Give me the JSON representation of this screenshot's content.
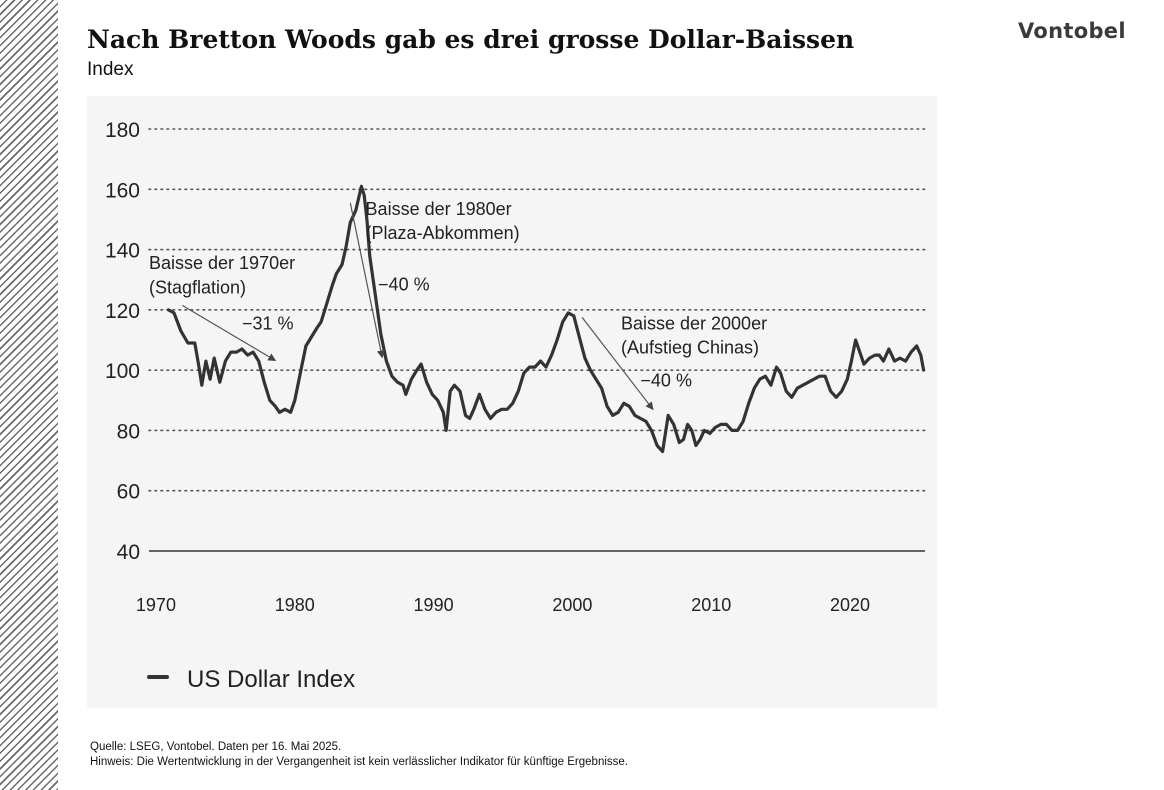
{
  "header": {
    "title": "Nach Bretton Woods gab es drei grosse Dollar-Baissen",
    "subtitle": "Index",
    "logo": "Vontobel"
  },
  "footer": {
    "source": "Quelle: LSEG, Vontobel. Daten per  16. Mai 2025.",
    "note": "Hinweis: Die Wertentwicklung in der Vergangenheit ist kein verlässlicher Indikator für künftige Ergebnisse."
  },
  "colors": {
    "line": "#333333",
    "grid": "#555555",
    "axis": "#333333",
    "text": "#222222"
  },
  "chart_data": {
    "type": "line",
    "title": "",
    "xlabel": "",
    "ylabel": "",
    "xlim": [
      1969.5,
      2025.4
    ],
    "ylim": [
      40,
      180
    ],
    "yticks": [
      40,
      60,
      80,
      100,
      120,
      140,
      160,
      180
    ],
    "xticks": [
      1970,
      1980,
      1990,
      2000,
      2010,
      2020
    ],
    "grid": "horizontal dotted",
    "legend_position": "bottom-left",
    "series": [
      {
        "name": "US Dollar Index",
        "x": [
          1970.9,
          1971.3,
          1971.8,
          1972.3,
          1972.8,
          1973.1,
          1973.3,
          1973.6,
          1973.9,
          1974.2,
          1974.6,
          1975.0,
          1975.4,
          1975.8,
          1976.2,
          1976.6,
          1977.0,
          1977.4,
          1977.8,
          1978.2,
          1978.6,
          1978.9,
          1979.3,
          1979.7,
          1980.0,
          1980.4,
          1980.8,
          1981.2,
          1981.6,
          1981.9,
          1982.3,
          1982.7,
          1983.0,
          1983.4,
          1983.7,
          1984.0,
          1984.4,
          1984.8,
          1985.0,
          1985.2,
          1985.4,
          1985.8,
          1986.2,
          1986.6,
          1987.0,
          1987.4,
          1987.8,
          1988.0,
          1988.4,
          1988.8,
          1989.1,
          1989.5,
          1989.9,
          1990.3,
          1990.7,
          1990.9,
          1991.2,
          1991.5,
          1991.9,
          1992.3,
          1992.6,
          1992.9,
          1993.3,
          1993.7,
          1994.1,
          1994.5,
          1994.9,
          1995.3,
          1995.7,
          1996.1,
          1996.5,
          1996.9,
          1997.3,
          1997.7,
          1998.1,
          1998.5,
          1998.9,
          1999.3,
          1999.7,
          2000.1,
          2000.5,
          2000.9,
          2001.3,
          2001.7,
          2002.1,
          2002.5,
          2002.9,
          2003.3,
          2003.7,
          2004.1,
          2004.5,
          2004.9,
          2005.3,
          2005.7,
          2006.1,
          2006.5,
          2006.9,
          2007.3,
          2007.7,
          2008.0,
          2008.3,
          2008.6,
          2008.9,
          2009.2,
          2009.5,
          2009.9,
          2010.3,
          2010.7,
          2011.1,
          2011.5,
          2011.9,
          2012.3,
          2012.7,
          2013.1,
          2013.5,
          2013.9,
          2014.3,
          2014.7,
          2015.0,
          2015.4,
          2015.8,
          2016.2,
          2016.6,
          2017.0,
          2017.4,
          2017.8,
          2018.2,
          2018.6,
          2019.0,
          2019.4,
          2019.8,
          2020.1,
          2020.4,
          2020.7,
          2021.0,
          2021.4,
          2021.8,
          2022.1,
          2022.4,
          2022.8,
          2023.2,
          2023.6,
          2024.0,
          2024.4,
          2024.8,
          2025.1,
          2025.3
        ],
        "values": [
          120,
          119,
          113,
          109,
          109,
          101,
          95,
          103,
          97,
          104,
          96,
          103,
          106,
          106,
          107,
          105,
          106,
          103,
          96,
          90,
          88,
          86,
          87,
          86,
          90,
          99,
          108,
          111,
          114,
          116,
          122,
          128,
          132,
          135,
          141,
          149,
          153,
          161,
          158,
          150,
          138,
          125,
          112,
          103,
          98,
          96,
          95,
          92,
          97,
          100,
          102,
          96,
          92,
          90,
          86,
          80,
          93,
          95,
          93,
          85,
          84,
          87,
          92,
          87,
          84,
          86,
          87,
          87,
          89,
          93,
          99,
          101,
          101,
          103,
          101,
          105,
          110,
          116,
          119,
          118,
          111,
          104,
          100,
          97,
          94,
          88,
          85,
          86,
          89,
          88,
          85,
          84,
          83,
          80,
          75,
          73,
          85,
          82,
          76,
          77,
          82,
          80,
          75,
          77,
          80,
          79,
          81,
          82,
          82,
          80,
          80,
          83,
          89,
          94,
          97,
          98,
          95,
          101,
          99,
          93,
          91,
          94,
          95,
          96,
          97,
          98,
          98,
          93,
          91,
          93,
          97,
          103,
          110,
          106,
          102,
          104,
          105,
          105,
          103,
          107,
          103,
          104,
          103,
          106,
          108,
          105,
          100
        ]
      }
    ],
    "annotations": [
      {
        "line1": "Baisse der 1970er",
        "line2": "(Stagflation)",
        "change": "−31 %"
      },
      {
        "line1": "Baisse der 1980er",
        "line2": "(Plaza-Abkommen)",
        "change": "−40 %"
      },
      {
        "line1": "Baisse der 2000er",
        "line2": "(Aufstieg Chinas)",
        "change": "−40 %"
      }
    ]
  }
}
